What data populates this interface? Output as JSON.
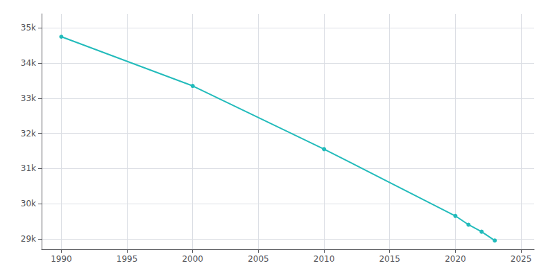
{
  "chart_data": {
    "type": "line",
    "x": [
      1990,
      2000,
      2010,
      2020,
      2021,
      2022,
      2023
    ],
    "values": [
      34750,
      33350,
      31550,
      29650,
      29400,
      29200,
      28950
    ],
    "color": "#22BBBB",
    "marker": "circle",
    "xlim": [
      1988.5,
      2026
    ],
    "xticks": [
      1990,
      1995,
      2000,
      2005,
      2010,
      2015,
      2020,
      2025
    ],
    "ylim": [
      28700,
      35400
    ],
    "yticks": [
      {
        "value": 29000,
        "label": "29k"
      },
      {
        "value": 30000,
        "label": "30k"
      },
      {
        "value": 31000,
        "label": "31k"
      },
      {
        "value": 32000,
        "label": "32k"
      },
      {
        "value": 33000,
        "label": "33k"
      },
      {
        "value": 34000,
        "label": "34k"
      },
      {
        "value": 35000,
        "label": "35k"
      }
    ],
    "grid": true
  }
}
